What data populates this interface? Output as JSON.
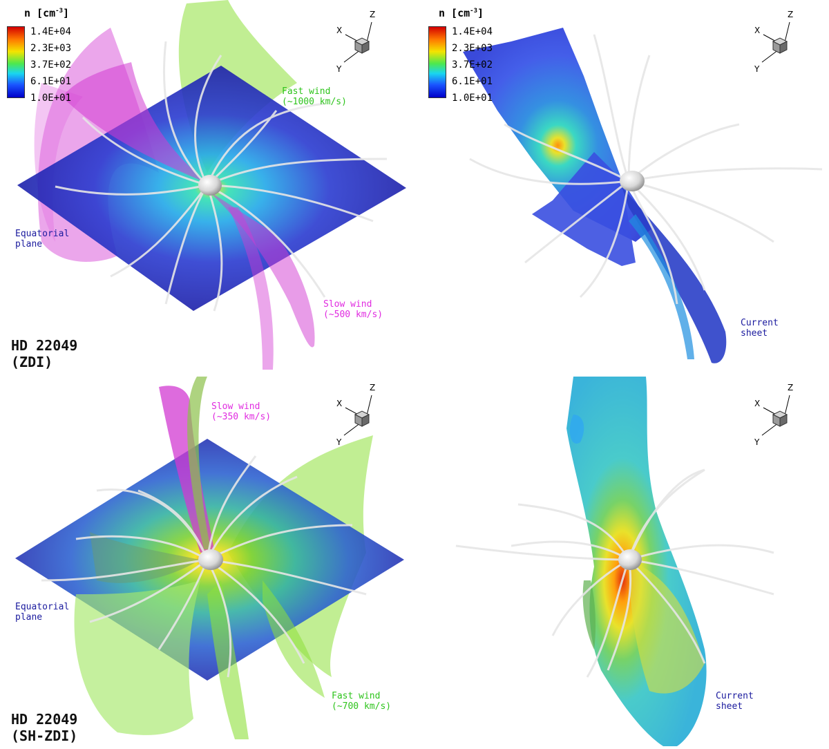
{
  "colorbar": {
    "title": "n [cm",
    "exponent": "-3",
    "title_end": "]",
    "ticks": [
      "1.4E+04",
      "2.3E+03",
      "3.7E+02",
      "6.1E+01",
      "1.0E+01"
    ]
  },
  "axes": {
    "x": "X",
    "y": "Y",
    "z": "Z"
  },
  "panels": {
    "top_left": {
      "fast_wind": "Fast wind\n(~1000 km/s)",
      "slow_wind": "Slow wind\n(~500 km/s)",
      "equatorial": "Equatorial\nplane",
      "star": "HD 22049\n(ZDI)"
    },
    "top_right": {
      "current_sheet": "Current\nsheet"
    },
    "bottom_left": {
      "slow_wind": "Slow wind\n(~350 km/s)",
      "fast_wind": "Fast wind\n(~700 km/s)",
      "equatorial": "Equatorial\nplane",
      "star": "HD 22049\n(SH-ZDI)"
    },
    "bottom_right": {
      "current_sheet": "Current\nsheet"
    }
  },
  "colors": {
    "plane": "#2b2bb8",
    "fast_wind": "#8ee03a",
    "slow_wind": "#d23ad2",
    "current_sheet": "#3a56e8"
  }
}
